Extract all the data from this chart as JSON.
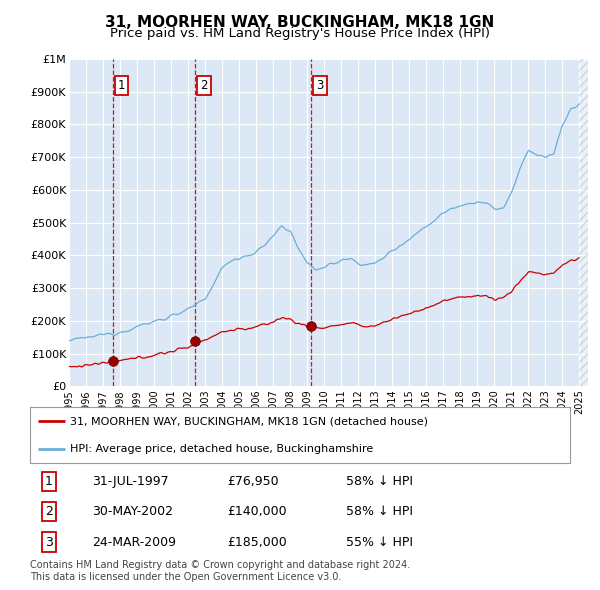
{
  "title": "31, MOORHEN WAY, BUCKINGHAM, MK18 1GN",
  "subtitle": "Price paid vs. HM Land Registry's House Price Index (HPI)",
  "background_color": "#ffffff",
  "plot_bg_color": "#dce8f5",
  "grid_color": "#ffffff",
  "ylim": [
    0,
    1000000
  ],
  "xlim_start": 1995.0,
  "xlim_end": 2025.5,
  "yticks": [
    0,
    100000,
    200000,
    300000,
    400000,
    500000,
    600000,
    700000,
    800000,
    900000,
    1000000
  ],
  "ytick_labels": [
    "£0",
    "£100K",
    "£200K",
    "£300K",
    "£400K",
    "£500K",
    "£600K",
    "£700K",
    "£800K",
    "£900K",
    "£1M"
  ],
  "xticks": [
    1995,
    1996,
    1997,
    1998,
    1999,
    2000,
    2001,
    2002,
    2003,
    2004,
    2005,
    2006,
    2007,
    2008,
    2009,
    2010,
    2011,
    2012,
    2013,
    2014,
    2015,
    2016,
    2017,
    2018,
    2019,
    2020,
    2021,
    2022,
    2023,
    2024,
    2025
  ],
  "sale_dates": [
    1997.58,
    2002.42,
    2009.23
  ],
  "sale_prices": [
    76950,
    140000,
    185000
  ],
  "sale_labels": [
    "1",
    "2",
    "3"
  ],
  "hpi_color": "#6baed6",
  "price_color": "#cc0000",
  "sale_marker_color": "#9b0000",
  "sale_vline_color": "#cc0000",
  "legend_entries": [
    "31, MOORHEN WAY, BUCKINGHAM, MK18 1GN (detached house)",
    "HPI: Average price, detached house, Buckinghamshire"
  ],
  "table_data": [
    [
      "1",
      "31-JUL-1997",
      "£76,950",
      "58% ↓ HPI"
    ],
    [
      "2",
      "30-MAY-2002",
      "£140,000",
      "58% ↓ HPI"
    ],
    [
      "3",
      "24-MAR-2009",
      "£185,000",
      "55% ↓ HPI"
    ]
  ],
  "footnote": "Contains HM Land Registry data © Crown copyright and database right 2024.\nThis data is licensed under the Open Government Licence v3.0.",
  "title_fontsize": 11,
  "subtitle_fontsize": 9.5
}
